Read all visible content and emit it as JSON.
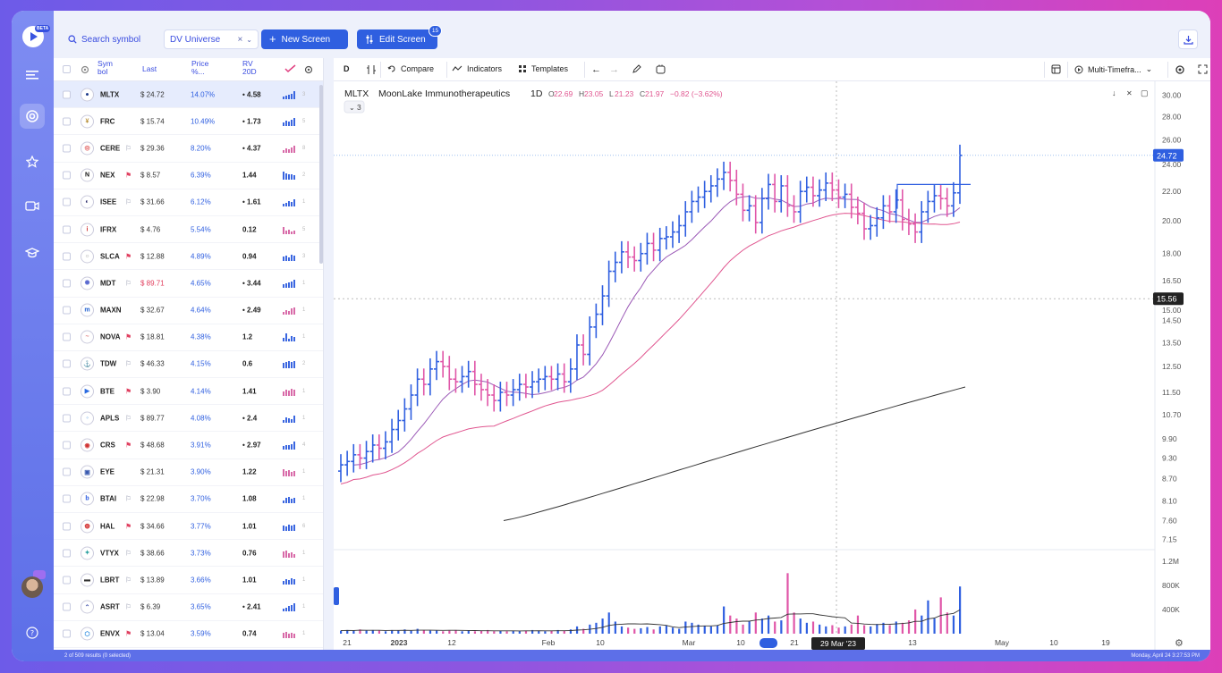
{
  "topbar": {
    "search_placeholder": "Search symbol",
    "universe": "DV Universe",
    "new_screen": "New Screen",
    "edit_screen": "Edit Screen",
    "edit_badge": "15"
  },
  "rail": {
    "beta": "BETA"
  },
  "screener": {
    "headers": {
      "symbol": "Sym bol",
      "last": "Last",
      "price": "Price %...",
      "rv": "RV 20D"
    },
    "rows": [
      {
        "sym": "MLTX",
        "flag": "",
        "last": "$ 24.72",
        "price": "14.07%",
        "rv": "• 4.58",
        "num": "3",
        "logo": "●",
        "logo_color": "#1d3a8a",
        "selected": true,
        "spark": [
          3,
          4,
          5,
          6,
          9
        ]
      },
      {
        "sym": "FRC",
        "flag": "",
        "last": "$ 15.74",
        "price": "10.49%",
        "rv": "• 1.73",
        "num": "5",
        "logo": "¥",
        "logo_color": "#b8903a",
        "selected": false,
        "spark": [
          4,
          6,
          5,
          7,
          9
        ]
      },
      {
        "sym": "CERE",
        "flag": "⚐",
        "last": "$ 29.36",
        "price": "8.20%",
        "rv": "• 4.37",
        "num": "8",
        "logo": "◎",
        "logo_color": "#e05555",
        "selected": false,
        "spark": [
          3,
          5,
          4,
          6,
          8
        ]
      },
      {
        "sym": "NEX",
        "flag": "⚑",
        "last": "$ 8.57",
        "price": "6.39%",
        "rv": "1.44",
        "num": "2",
        "logo": "N",
        "logo_color": "#111",
        "selected": false,
        "spark": [
          9,
          7,
          6,
          6,
          5
        ]
      },
      {
        "sym": "ISEE",
        "flag": "⚐",
        "last": "$ 31.66",
        "price": "6.12%",
        "rv": "• 1.61",
        "num": "1",
        "logo": "◐",
        "logo_color": "#2a2a6a",
        "selected": false,
        "spark": [
          3,
          4,
          6,
          5,
          8
        ]
      },
      {
        "sym": "IFRX",
        "flag": "",
        "last": "$ 4.76",
        "price": "5.54%",
        "rv": "0.12",
        "num": "5",
        "logo": "i",
        "logo_color": "#d03333",
        "selected": false,
        "spark": [
          8,
          4,
          5,
          3,
          4
        ]
      },
      {
        "sym": "SLCA",
        "flag": "⚑",
        "last": "$ 12.88",
        "price": "4.89%",
        "rv": "0.94",
        "num": "3",
        "logo": "○",
        "logo_color": "#999",
        "selected": false,
        "spark": [
          5,
          6,
          4,
          7,
          6
        ]
      },
      {
        "sym": "MDT",
        "flag": "⚐",
        "last": "$ 89.71",
        "price": "4.65%",
        "rv": "• 3.44",
        "num": "1",
        "logo": "✺",
        "logo_color": "#5a6ad0",
        "selected": false,
        "spark": [
          4,
          5,
          6,
          7,
          9
        ]
      },
      {
        "sym": "MAXN",
        "flag": "",
        "last": "$ 32.67",
        "price": "4.64%",
        "rv": "• 2.49",
        "num": "1",
        "logo": "m",
        "logo_color": "#1f5fd0",
        "selected": false,
        "spark": [
          3,
          5,
          4,
          7,
          8
        ]
      },
      {
        "sym": "NOVA",
        "flag": "⚑",
        "last": "$ 18.81",
        "price": "4.38%",
        "rv": "1.2",
        "num": "1",
        "logo": "~",
        "logo_color": "#e07a7a",
        "selected": false,
        "spark": [
          4,
          9,
          3,
          6,
          5
        ]
      },
      {
        "sym": "TDW",
        "flag": "⚐",
        "last": "$ 46.33",
        "price": "4.15%",
        "rv": "0.6",
        "num": "2",
        "logo": "⚓",
        "logo_color": "#8a2a2a",
        "selected": false,
        "spark": [
          6,
          7,
          8,
          7,
          8
        ]
      },
      {
        "sym": "BTE",
        "flag": "⚑",
        "last": "$ 3.90",
        "price": "4.14%",
        "rv": "1.41",
        "num": "1",
        "logo": "▶",
        "logo_color": "#2a6ae0",
        "selected": false,
        "spark": [
          5,
          7,
          6,
          8,
          7
        ]
      },
      {
        "sym": "APLS",
        "flag": "⚐",
        "last": "$ 89.77",
        "price": "4.08%",
        "rv": "• 2.4",
        "num": "1",
        "logo": "◦",
        "logo_color": "#3a8ae0",
        "selected": false,
        "spark": [
          3,
          6,
          5,
          4,
          8
        ]
      },
      {
        "sym": "CRS",
        "flag": "⚑",
        "last": "$ 48.68",
        "price": "3.91%",
        "rv": "• 2.97",
        "num": "4",
        "logo": "◉",
        "logo_color": "#d03333",
        "selected": false,
        "spark": [
          4,
          5,
          5,
          6,
          9
        ]
      },
      {
        "sym": "EYE",
        "flag": "",
        "last": "$ 21.31",
        "price": "3.90%",
        "rv": "1.22",
        "num": "1",
        "logo": "▣",
        "logo_color": "#3a5ab0",
        "selected": false,
        "spark": [
          8,
          6,
          7,
          5,
          6
        ]
      },
      {
        "sym": "BTAI",
        "flag": "⚐",
        "last": "$ 22.98",
        "price": "3.70%",
        "rv": "1.08",
        "num": "1",
        "logo": "b",
        "logo_color": "#2a5ae0",
        "selected": false,
        "spark": [
          3,
          6,
          7,
          5,
          6
        ]
      },
      {
        "sym": "HAL",
        "flag": "⚑",
        "last": "$ 34.66",
        "price": "3.77%",
        "rv": "1.01",
        "num": "6",
        "logo": "◍",
        "logo_color": "#d02020",
        "selected": false,
        "spark": [
          6,
          5,
          7,
          6,
          7
        ]
      },
      {
        "sym": "VTYX",
        "flag": "⚐",
        "last": "$ 38.66",
        "price": "3.73%",
        "rv": "0.76",
        "num": "1",
        "logo": "✦",
        "logo_color": "#2aa0a0",
        "selected": false,
        "spark": [
          7,
          8,
          5,
          6,
          4
        ]
      },
      {
        "sym": "LBRT",
        "flag": "⚐",
        "last": "$ 13.89",
        "price": "3.66%",
        "rv": "1.01",
        "num": "1",
        "logo": "▬",
        "logo_color": "#333",
        "selected": false,
        "spark": [
          4,
          6,
          5,
          7,
          6
        ]
      },
      {
        "sym": "ASRT",
        "flag": "⚐",
        "last": "$ 6.39",
        "price": "3.65%",
        "rv": "• 2.41",
        "num": "1",
        "logo": "⌃",
        "logo_color": "#4a5ab0",
        "selected": false,
        "spark": [
          3,
          4,
          6,
          7,
          9
        ]
      },
      {
        "sym": "ENVX",
        "flag": "⚑",
        "last": "$ 13.04",
        "price": "3.59%",
        "rv": "0.74",
        "num": "1",
        "logo": "⬡",
        "logo_color": "#2a8ae0",
        "selected": false,
        "spark": [
          6,
          7,
          5,
          6,
          5
        ]
      }
    ]
  },
  "chart_toolbar": {
    "interval": "D",
    "compare": "Compare",
    "indicators": "Indicators",
    "templates": "Templates",
    "layout": "Multi-Timefra..."
  },
  "chart_legend": {
    "symbol": "MLTX",
    "name": "MoonLake Immunotherapeutics",
    "timeframe": "1D",
    "o_label": "O",
    "o": "22.69",
    "h_label": "H",
    "h": "23.05",
    "l_label": "L",
    "l": "21.23",
    "c_label": "C",
    "c": "21.97",
    "change": "−0.82 (−3.62%)",
    "study_count": "3"
  },
  "chart_data": {
    "type": "bar",
    "title": "MLTX MoonLake Immunotherapeutics 1D",
    "price_ticks": [
      "30.00",
      "28.00",
      "26.00",
      "24.00",
      "22.00",
      "20.00",
      "18.00",
      "16.50",
      "15.00",
      "14.50",
      "13.50",
      "12.50",
      "11.50",
      "10.70",
      "9.90",
      "9.30",
      "8.70",
      "8.10",
      "7.60",
      "7.15"
    ],
    "last_price_label": "24.72",
    "crosshair_price_label": "15.56",
    "volume_ticks": [
      "1.2M",
      "800K",
      "400K"
    ],
    "x_ticks": [
      "21",
      "2023",
      "12",
      "Feb",
      "10",
      "Mar",
      "10",
      "21",
      "13",
      "May",
      "10",
      "19"
    ],
    "crosshair_date": "29 Mar '23",
    "closes": [
      9.1,
      9.2,
      9.4,
      9.3,
      9.5,
      9.7,
      9.6,
      9.8,
      10.2,
      10.5,
      10.9,
      11.4,
      12.0,
      11.8,
      12.4,
      12.7,
      12.5,
      12.0,
      11.9,
      12.1,
      12.3,
      11.8,
      11.6,
      11.4,
      11.2,
      11.5,
      11.4,
      11.6,
      11.8,
      11.7,
      11.9,
      12.0,
      12.1,
      12.0,
      12.2,
      11.9,
      12.4,
      13.4,
      13.0,
      14.2,
      14.8,
      15.7,
      17.0,
      17.5,
      18.1,
      17.8,
      17.6,
      18.0,
      18.6,
      18.2,
      18.9,
      19.0,
      19.3,
      19.7,
      20.6,
      21.3,
      21.6,
      22.0,
      22.4,
      22.9,
      23.4,
      22.8,
      21.8,
      20.7,
      21.0,
      19.9,
      21.5,
      22.5,
      21.3,
      22.4,
      21.0,
      20.6,
      22.0,
      22.3,
      21.7,
      22.1,
      22.6,
      22.1,
      21.6,
      21.8,
      20.9,
      20.5,
      19.5,
      19.7,
      20.2,
      21.0,
      20.6,
      21.4,
      20.1,
      19.8,
      19.3,
      20.6,
      21.3,
      21.7,
      21.5,
      21.0,
      21.9,
      24.72
    ],
    "volumes": [
      0.05,
      0.06,
      0.05,
      0.07,
      0.05,
      0.06,
      0.05,
      0.04,
      0.06,
      0.05,
      0.07,
      0.05,
      0.08,
      0.06,
      0.05,
      0.05,
      0.04,
      0.05,
      0.06,
      0.04,
      0.05,
      0.04,
      0.05,
      0.06,
      0.04,
      0.05,
      0.04,
      0.05,
      0.04,
      0.05,
      0.06,
      0.05,
      0.04,
      0.05,
      0.06,
      0.05,
      0.07,
      0.12,
      0.08,
      0.15,
      0.18,
      0.25,
      0.35,
      0.2,
      0.12,
      0.1,
      0.08,
      0.09,
      0.11,
      0.07,
      0.12,
      0.14,
      0.1,
      0.08,
      0.2,
      0.18,
      0.15,
      0.13,
      0.12,
      0.14,
      0.45,
      0.3,
      0.25,
      0.15,
      0.2,
      0.35,
      0.25,
      0.3,
      0.2,
      0.22,
      1.0,
      0.35,
      0.25,
      0.18,
      0.2,
      0.15,
      0.12,
      0.14,
      0.1,
      0.12,
      0.15,
      0.3,
      0.14,
      0.12,
      0.16,
      0.18,
      0.14,
      0.2,
      0.18,
      0.22,
      0.4,
      0.3,
      0.55,
      0.25,
      0.6,
      0.35,
      0.3,
      0.78
    ]
  },
  "status": {
    "left": "2 of 509 results (0 selected)",
    "right": "Monday, April 24 3:27:53 PM"
  }
}
